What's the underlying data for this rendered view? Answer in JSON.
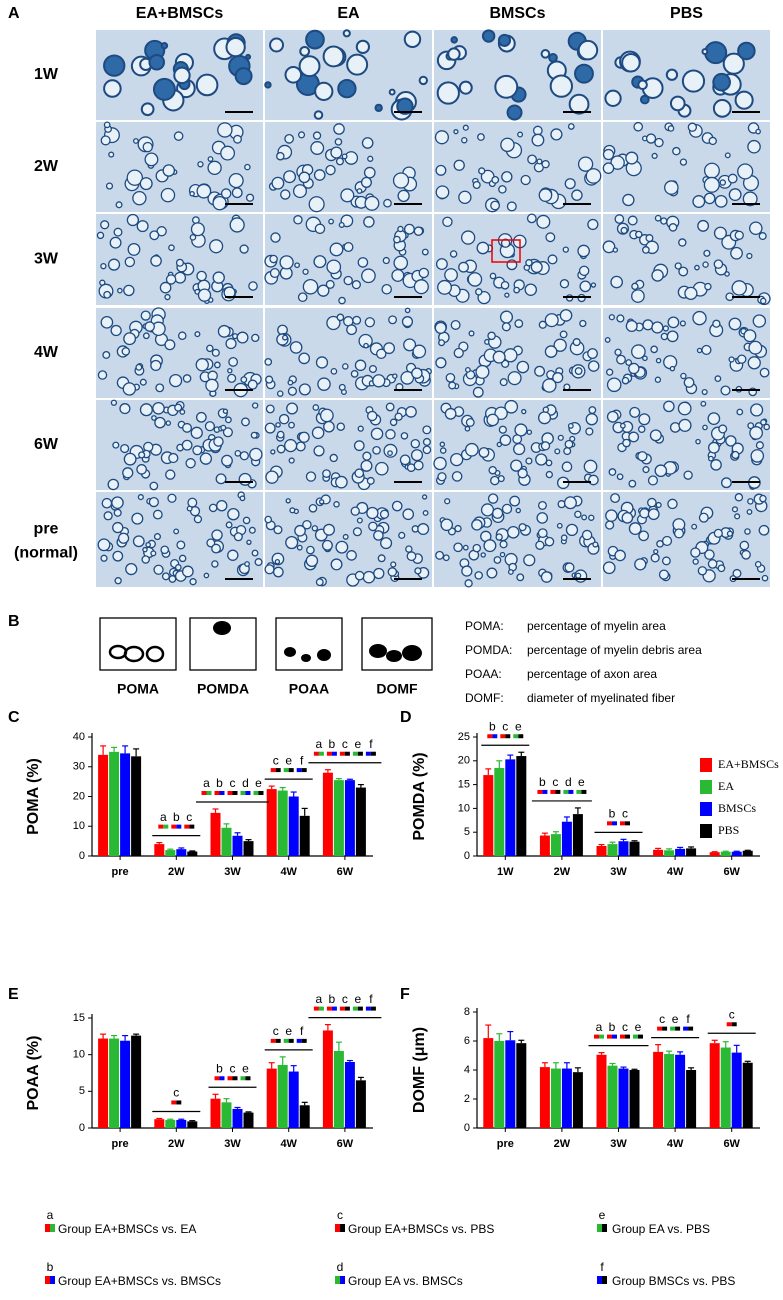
{
  "figure": {
    "panel_a": {
      "label": "A",
      "columns": [
        "EA+BMSCs",
        "EA",
        "BMSCs",
        "PBS"
      ],
      "rows": [
        "1W",
        "2W",
        "3W",
        "4W",
        "6W",
        "pre"
      ],
      "last_row_sub": "(normal)"
    },
    "panel_b": {
      "label": "B",
      "shapes": [
        "POMA",
        "POMDA",
        "POAA",
        "DOMF"
      ],
      "definitions": [
        {
          "abbr": "POMA:",
          "text": "percentage of myelin area"
        },
        {
          "abbr": "POMDA:",
          "text": "percentage of myelin debris area"
        },
        {
          "abbr": "POAA:",
          "text": "percentage of axon area"
        },
        {
          "abbr": "DOMF:",
          "text": "diameter of myelinated fiber"
        }
      ]
    },
    "comparisons": [
      {
        "letter": "a",
        "text": "Group EA+BMSCs vs. EA",
        "colors": [
          "#ff0000",
          "#2ab934"
        ]
      },
      {
        "letter": "b",
        "text": "Group EA+BMSCs vs. BMSCs",
        "colors": [
          "#ff0000",
          "#0000ff"
        ]
      },
      {
        "letter": "c",
        "text": "Group EA+BMSCs vs. PBS",
        "colors": [
          "#ff0000",
          "#000000"
        ]
      },
      {
        "letter": "d",
        "text": "Group EA vs. BMSCs",
        "colors": [
          "#2ab934",
          "#0000ff"
        ]
      },
      {
        "letter": "e",
        "text": "Group EA vs. PBS",
        "colors": [
          "#2ab934",
          "#000000"
        ]
      },
      {
        "letter": "f",
        "text": "Group BMSCs vs. PBS",
        "colors": [
          "#0000ff",
          "#000000"
        ]
      }
    ]
  },
  "chart_data": [
    {
      "type": "bar",
      "panel": "C",
      "ylabel": "POMA (%)",
      "categories": [
        "pre",
        "2W",
        "3W",
        "4W",
        "6W"
      ],
      "series": [
        {
          "color": "#ff0000",
          "values": [
            34,
            4,
            14.5,
            22.5,
            28
          ],
          "errors": [
            3,
            0.5,
            1.3,
            1,
            1
          ]
        },
        {
          "color": "#2ab934",
          "values": [
            35,
            2,
            9.5,
            22,
            25.5
          ],
          "errors": [
            1.5,
            0.3,
            1.3,
            1,
            0.5
          ]
        },
        {
          "color": "#0000ff",
          "values": [
            34.5,
            2.3,
            6.8,
            20,
            25.5
          ],
          "errors": [
            2.5,
            0.4,
            1,
            1.5,
            0.3
          ]
        },
        {
          "color": "#000000",
          "values": [
            33.5,
            1.5,
            5,
            13.5,
            23
          ],
          "errors": [
            2.5,
            0.2,
            0.5,
            2.5,
            1
          ]
        }
      ],
      "ylim": [
        0,
        40
      ],
      "yticks": [
        0,
        10,
        20,
        30,
        40
      ],
      "legend": false,
      "annotations": [
        {
          "category": 1,
          "letters": [
            "a",
            "b",
            "c"
          ]
        },
        {
          "category": 2,
          "letters": [
            "a",
            "b",
            "c",
            "d",
            "e"
          ]
        },
        {
          "category": 3,
          "letters": [
            "c",
            "e",
            "f"
          ]
        },
        {
          "category": 4,
          "letters": [
            "a",
            "b",
            "c",
            "e",
            "f"
          ]
        }
      ]
    },
    {
      "type": "bar",
      "panel": "D",
      "ylabel": "POMDA (%)",
      "categories": [
        "1W",
        "2W",
        "3W",
        "4W",
        "6W"
      ],
      "series": [
        {
          "name": "EA+BMSCs",
          "color": "#ff0000",
          "values": [
            17,
            4.3,
            2.1,
            1.3,
            0.8
          ],
          "errors": [
            1.3,
            0.5,
            0.3,
            0.3,
            0.1
          ]
        },
        {
          "name": "EA",
          "color": "#2ab934",
          "values": [
            18.5,
            4.6,
            2.5,
            1.2,
            0.9
          ],
          "errors": [
            1.5,
            0.5,
            0.4,
            0.3,
            0.1
          ]
        },
        {
          "name": "BMSCs",
          "color": "#0000ff",
          "values": [
            20.3,
            7.2,
            3.1,
            1.5,
            0.9
          ],
          "errors": [
            0.9,
            1,
            0.4,
            0.3,
            0.1
          ]
        },
        {
          "name": "PBS",
          "color": "#000000",
          "values": [
            21,
            8.8,
            3,
            1.6,
            1.1
          ],
          "errors": [
            0.8,
            1.3,
            0.2,
            0.3,
            0.1
          ]
        }
      ],
      "ylim": [
        0,
        25
      ],
      "yticks": [
        0,
        5,
        10,
        15,
        20,
        25
      ],
      "legend": "top-right",
      "annotations": [
        {
          "category": 0,
          "letters": [
            "b",
            "c",
            "e"
          ]
        },
        {
          "category": 1,
          "letters": [
            "b",
            "c",
            "d",
            "e"
          ]
        },
        {
          "category": 2,
          "letters": [
            "b",
            "c"
          ]
        }
      ]
    },
    {
      "type": "bar",
      "panel": "E",
      "ylabel": "POAA (%)",
      "categories": [
        "pre",
        "2W",
        "3W",
        "4W",
        "6W"
      ],
      "series": [
        {
          "color": "#ff0000",
          "values": [
            12.2,
            1.2,
            4,
            8.1,
            13.3
          ],
          "errors": [
            0.6,
            0.1,
            0.6,
            0.8,
            0.8
          ]
        },
        {
          "color": "#2ab934",
          "values": [
            12.2,
            1.1,
            3.5,
            8.6,
            10.5
          ],
          "errors": [
            0.4,
            0.1,
            0.5,
            1.1,
            1.2
          ]
        },
        {
          "color": "#0000ff",
          "values": [
            11.9,
            1.1,
            2.6,
            7.7,
            9
          ],
          "errors": [
            0.7,
            0.1,
            0.2,
            0.8,
            0.2
          ]
        },
        {
          "color": "#000000",
          "values": [
            12.6,
            0.9,
            2.1,
            3.1,
            6.5
          ],
          "errors": [
            0.2,
            0.1,
            0.1,
            0.4,
            0.4
          ]
        }
      ],
      "ylim": [
        0,
        15
      ],
      "yticks": [
        0,
        5,
        10,
        15
      ],
      "legend": false,
      "annotations": [
        {
          "category": 1,
          "letters": [
            "c"
          ]
        },
        {
          "category": 2,
          "letters": [
            "b",
            "c",
            "e"
          ]
        },
        {
          "category": 3,
          "letters": [
            "c",
            "e",
            "f"
          ]
        },
        {
          "category": 4,
          "letters": [
            "a",
            "b",
            "c",
            "e",
            "f"
          ]
        }
      ]
    },
    {
      "type": "bar",
      "panel": "F",
      "ylabel": "DOMF (μm)",
      "categories": [
        "pre",
        "2W",
        "3W",
        "4W",
        "6W"
      ],
      "series": [
        {
          "color": "#ff0000",
          "values": [
            6.2,
            4.2,
            5.05,
            5.25,
            5.85
          ],
          "errors": [
            0.9,
            0.3,
            0.15,
            0.5,
            0.2
          ]
        },
        {
          "color": "#2ab934",
          "values": [
            6,
            4.1,
            4.3,
            5.1,
            5.55
          ],
          "errors": [
            0.5,
            0.4,
            0.15,
            0.2,
            0.4
          ]
        },
        {
          "color": "#0000ff",
          "values": [
            6.05,
            4.1,
            4.1,
            5.05,
            5.2
          ],
          "errors": [
            0.6,
            0.4,
            0.1,
            0.2,
            0.5
          ]
        },
        {
          "color": "#000000",
          "values": [
            5.85,
            3.85,
            4,
            4,
            4.5
          ],
          "errors": [
            0.2,
            0.3,
            0.05,
            0.15,
            0.1
          ]
        }
      ],
      "ylim": [
        0,
        8
      ],
      "yticks": [
        0,
        2,
        4,
        6,
        8
      ],
      "legend": false,
      "annotations": [
        {
          "category": 2,
          "letters": [
            "a",
            "b",
            "c",
            "e"
          ]
        },
        {
          "category": 3,
          "letters": [
            "c",
            "e",
            "f"
          ]
        },
        {
          "category": 4,
          "letters": [
            "c"
          ]
        }
      ]
    }
  ]
}
